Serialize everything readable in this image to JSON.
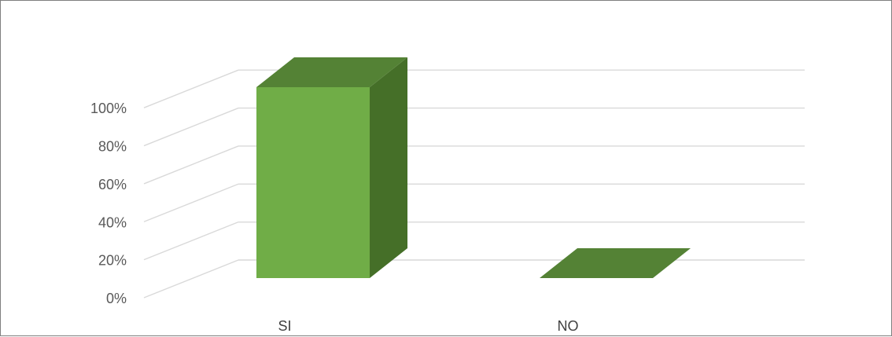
{
  "chart_data": {
    "type": "bar",
    "style": "3d-column",
    "categories": [
      "SI",
      "NO"
    ],
    "values": [
      100,
      0
    ],
    "value_unit": "%",
    "ylim": [
      0,
      100
    ],
    "yticks": [
      "0%",
      "20%",
      "40%",
      "60%",
      "80%",
      "100%"
    ],
    "grid": true,
    "legend": "none",
    "colors": {
      "front": "#70ad47",
      "top": "#548235",
      "side": "#456f28",
      "grid": "#d9d9d9",
      "border": "#7f7f7f"
    }
  }
}
